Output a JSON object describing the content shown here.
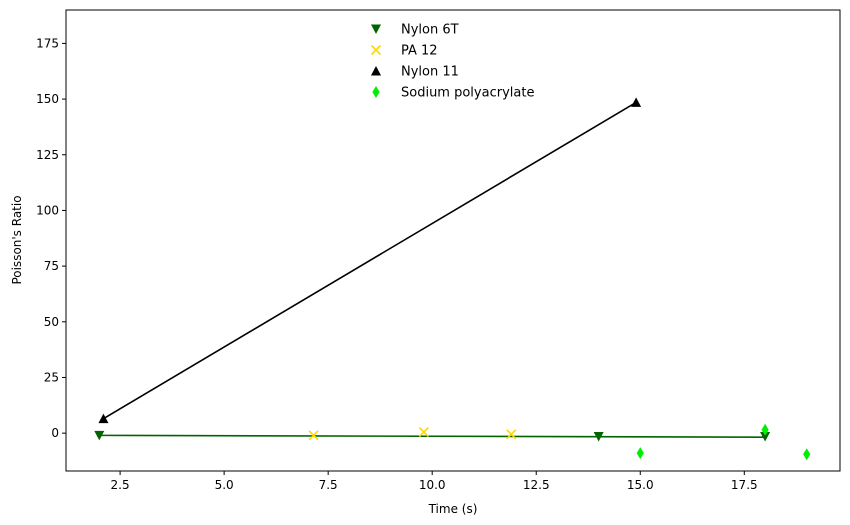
{
  "chart_data": {
    "type": "scatter",
    "title": "",
    "xlabel": "Time (s)",
    "ylabel": "Poisson's Ratio",
    "xlim": [
      1.2,
      19.8
    ],
    "ylim": [
      -17,
      190
    ],
    "xticks": [
      2.5,
      5.0,
      7.5,
      10.0,
      12.5,
      15.0,
      17.5
    ],
    "xtick_labels": [
      "2.5",
      "5.0",
      "7.5",
      "10.0",
      "12.5",
      "15.0",
      "17.5"
    ],
    "yticks": [
      0,
      25,
      50,
      75,
      100,
      125,
      150,
      175
    ],
    "ytick_labels": [
      "0",
      "25",
      "50",
      "75",
      "100",
      "125",
      "150",
      "175"
    ],
    "grid": false,
    "legend_position": "top-center",
    "series": [
      {
        "name": "Nylon 6T",
        "marker": "triangle-down",
        "color": "#006400",
        "points": [
          [
            2.0,
            -1.0
          ],
          [
            14.0,
            -1.5
          ],
          [
            18.0,
            -1.5
          ]
        ],
        "fit_line": [
          [
            2.0,
            -1.0
          ],
          [
            18.0,
            -1.8
          ]
        ],
        "line_color": "#006400"
      },
      {
        "name": "PA 12",
        "marker": "x",
        "color": "#FFD700",
        "points": [
          [
            7.15,
            -1.0
          ],
          [
            9.8,
            0.5
          ],
          [
            11.9,
            -0.5
          ]
        ]
      },
      {
        "name": "Nylon 11",
        "marker": "triangle-up",
        "color": "#000000",
        "points": [
          [
            2.1,
            6.5
          ],
          [
            14.9,
            148.5
          ]
        ],
        "fit_line": [
          [
            2.1,
            6.5
          ],
          [
            14.9,
            148.5
          ]
        ],
        "line_color": "#000000"
      },
      {
        "name": "Sodium polyacrylate",
        "marker": "thin-diamond",
        "color": "#00EE00",
        "points": [
          [
            15.0,
            -9.0
          ],
          [
            18.0,
            1.5
          ],
          [
            19.0,
            -9.5
          ]
        ]
      }
    ]
  }
}
